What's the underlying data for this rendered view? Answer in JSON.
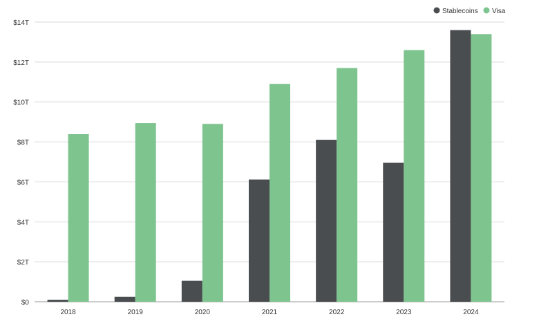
{
  "chart_data": {
    "type": "bar",
    "categories": [
      "2018",
      "2019",
      "2020",
      "2021",
      "2022",
      "2023",
      "2024"
    ],
    "series": [
      {
        "name": "Stablecoins",
        "color": "#4a4d50",
        "values": [
          0.1,
          0.25,
          1.05,
          6.12,
          8.1,
          6.96,
          13.6
        ]
      },
      {
        "name": "Visa",
        "color": "#7ec48f",
        "values": [
          8.4,
          8.95,
          8.9,
          10.9,
          11.7,
          12.6,
          13.4
        ]
      }
    ],
    "yticks": [
      "$0",
      "$2T",
      "$4T",
      "$6T",
      "$8T",
      "$10T",
      "$12T",
      "$14T"
    ],
    "ylim": [
      0,
      14
    ],
    "grid": true,
    "legend_position": "top-right"
  }
}
